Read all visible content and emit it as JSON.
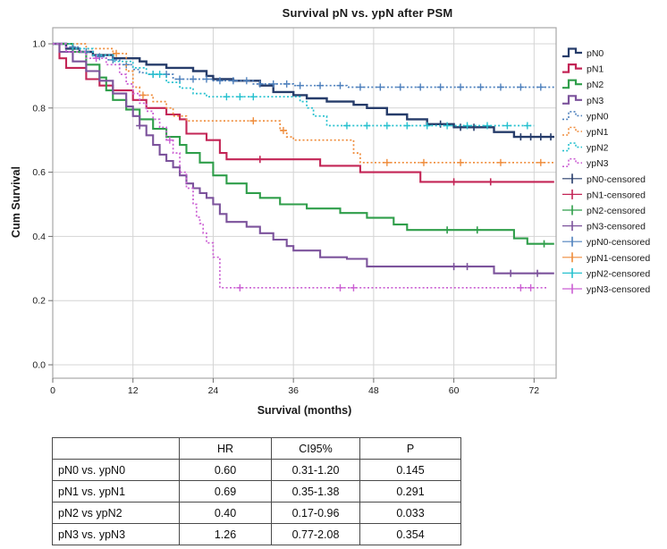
{
  "title": "Survival pN vs. ypN after PSM",
  "axes": {
    "x_label": "Survival (months)",
    "y_label": "Cum Survival",
    "x_ticks": [
      0,
      12,
      24,
      36,
      48,
      60,
      72
    ],
    "y_ticks": [
      0.0,
      0.2,
      0.4,
      0.6,
      0.8,
      1.0
    ]
  },
  "chart_data": {
    "type": "line",
    "subtype": "kaplan-meier-step",
    "title": "Survival pN vs. ypN after PSM",
    "xlabel": "Survival (months)",
    "ylabel": "Cum Survival",
    "xlim": [
      0,
      75.3
    ],
    "ylim": [
      0.0,
      1.0
    ],
    "x_ticks": [
      0,
      12,
      24,
      36,
      48,
      60,
      72
    ],
    "y_ticks": [
      0.0,
      0.2,
      0.4,
      0.6,
      0.8,
      1.0
    ],
    "grid": true,
    "legend_position": "right",
    "series": [
      {
        "name": "pN0",
        "color": "#263c6a",
        "dashed": false,
        "points": [
          [
            0,
            1.0
          ],
          [
            2,
            0.985
          ],
          [
            4,
            0.975
          ],
          [
            6,
            0.965
          ],
          [
            9,
            0.955
          ],
          [
            13,
            0.945
          ],
          [
            14,
            0.935
          ],
          [
            17,
            0.925
          ],
          [
            21,
            0.915
          ],
          [
            23,
            0.9
          ],
          [
            24,
            0.89
          ],
          [
            27,
            0.885
          ],
          [
            31,
            0.87
          ],
          [
            33,
            0.85
          ],
          [
            36,
            0.84
          ],
          [
            38,
            0.83
          ],
          [
            41,
            0.82
          ],
          [
            45,
            0.81
          ],
          [
            47,
            0.8
          ],
          [
            50,
            0.78
          ],
          [
            53,
            0.765
          ],
          [
            56,
            0.75
          ],
          [
            60,
            0.74
          ],
          [
            66,
            0.725
          ],
          [
            69,
            0.71
          ],
          [
            75,
            0.71
          ]
        ],
        "censored": [
          [
            58,
            0.75
          ],
          [
            61,
            0.74
          ],
          [
            63,
            0.74
          ],
          [
            70,
            0.71
          ],
          [
            71.5,
            0.71
          ],
          [
            73,
            0.71
          ],
          [
            74.5,
            0.71
          ]
        ]
      },
      {
        "name": "pN1",
        "color": "#c32556",
        "dashed": false,
        "points": [
          [
            0,
            1.0
          ],
          [
            1,
            0.955
          ],
          [
            2,
            0.925
          ],
          [
            5,
            0.89
          ],
          [
            7,
            0.87
          ],
          [
            9,
            0.855
          ],
          [
            12,
            0.825
          ],
          [
            14,
            0.8
          ],
          [
            17,
            0.78
          ],
          [
            19,
            0.765
          ],
          [
            20,
            0.72
          ],
          [
            23,
            0.7
          ],
          [
            25,
            0.66
          ],
          [
            26,
            0.64
          ],
          [
            40,
            0.62
          ],
          [
            46,
            0.6
          ],
          [
            55,
            0.57
          ],
          [
            75,
            0.57
          ]
        ],
        "censored": [
          [
            31,
            0.64
          ],
          [
            60,
            0.57
          ],
          [
            65.5,
            0.57
          ]
        ]
      },
      {
        "name": "pN2",
        "color": "#2f9e4a",
        "dashed": false,
        "points": [
          [
            0,
            1.0
          ],
          [
            3,
            0.975
          ],
          [
            5,
            0.935
          ],
          [
            7,
            0.895
          ],
          [
            8,
            0.855
          ],
          [
            9,
            0.825
          ],
          [
            11,
            0.795
          ],
          [
            13,
            0.765
          ],
          [
            15,
            0.735
          ],
          [
            17,
            0.71
          ],
          [
            19,
            0.685
          ],
          [
            20,
            0.66
          ],
          [
            22,
            0.63
          ],
          [
            24,
            0.59
          ],
          [
            26,
            0.565
          ],
          [
            29,
            0.535
          ],
          [
            31,
            0.52
          ],
          [
            34,
            0.5
          ],
          [
            38,
            0.487
          ],
          [
            43,
            0.473
          ],
          [
            47,
            0.458
          ],
          [
            51,
            0.437
          ],
          [
            53,
            0.42
          ],
          [
            69,
            0.394
          ],
          [
            71,
            0.377
          ],
          [
            75,
            0.377
          ]
        ],
        "censored": [
          [
            59,
            0.42
          ],
          [
            63.5,
            0.42
          ],
          [
            73.5,
            0.377
          ]
        ]
      },
      {
        "name": "pN3",
        "color": "#7c539c",
        "dashed": false,
        "points": [
          [
            0,
            1.0
          ],
          [
            1,
            0.975
          ],
          [
            3,
            0.945
          ],
          [
            5,
            0.915
          ],
          [
            7,
            0.885
          ],
          [
            9,
            0.845
          ],
          [
            11,
            0.805
          ],
          [
            12,
            0.775
          ],
          [
            13,
            0.745
          ],
          [
            14,
            0.715
          ],
          [
            15,
            0.685
          ],
          [
            16,
            0.655
          ],
          [
            17,
            0.635
          ],
          [
            18,
            0.615
          ],
          [
            19,
            0.59
          ],
          [
            20,
            0.565
          ],
          [
            21,
            0.55
          ],
          [
            22,
            0.535
          ],
          [
            23,
            0.52
          ],
          [
            24,
            0.5
          ],
          [
            25,
            0.47
          ],
          [
            26,
            0.445
          ],
          [
            29,
            0.43
          ],
          [
            31,
            0.41
          ],
          [
            33,
            0.39
          ],
          [
            35,
            0.37
          ],
          [
            36,
            0.356
          ],
          [
            40,
            0.335
          ],
          [
            44,
            0.33
          ],
          [
            47,
            0.306
          ],
          [
            66,
            0.285
          ],
          [
            75,
            0.285
          ]
        ],
        "censored": [
          [
            13,
            0.745
          ],
          [
            60,
            0.306
          ],
          [
            62,
            0.306
          ],
          [
            68.5,
            0.285
          ],
          [
            72.5,
            0.285
          ]
        ]
      },
      {
        "name": "ypN0",
        "color": "#4f81bd",
        "dashed": true,
        "points": [
          [
            0,
            1.0
          ],
          [
            2,
            0.99
          ],
          [
            4,
            0.975
          ],
          [
            6,
            0.96
          ],
          [
            8,
            0.95
          ],
          [
            10,
            0.935
          ],
          [
            12,
            0.92
          ],
          [
            13,
            0.91
          ],
          [
            14,
            0.905
          ],
          [
            18,
            0.89
          ],
          [
            24,
            0.885
          ],
          [
            30,
            0.875
          ],
          [
            36,
            0.87
          ],
          [
            44,
            0.865
          ],
          [
            75,
            0.865
          ]
        ],
        "censored": [
          [
            3,
            0.99
          ],
          [
            5,
            0.975
          ],
          [
            7,
            0.96
          ],
          [
            9,
            0.95
          ],
          [
            11,
            0.935
          ],
          [
            15,
            0.905
          ],
          [
            17,
            0.905
          ],
          [
            19,
            0.89
          ],
          [
            21,
            0.89
          ],
          [
            23,
            0.89
          ],
          [
            25,
            0.885
          ],
          [
            27,
            0.885
          ],
          [
            29,
            0.885
          ],
          [
            31,
            0.875
          ],
          [
            33,
            0.875
          ],
          [
            35,
            0.875
          ],
          [
            37,
            0.87
          ],
          [
            40,
            0.87
          ],
          [
            43,
            0.87
          ],
          [
            46,
            0.865
          ],
          [
            49,
            0.865
          ],
          [
            52,
            0.865
          ],
          [
            55,
            0.865
          ],
          [
            58,
            0.865
          ],
          [
            61,
            0.865
          ],
          [
            64,
            0.865
          ],
          [
            67,
            0.865
          ],
          [
            70,
            0.865
          ],
          [
            73,
            0.865
          ]
        ]
      },
      {
        "name": "ypN1",
        "color": "#ef8c3b",
        "dashed": true,
        "points": [
          [
            0,
            1.0
          ],
          [
            5,
            0.985
          ],
          [
            9,
            0.97
          ],
          [
            11,
            0.915
          ],
          [
            12,
            0.865
          ],
          [
            13,
            0.84
          ],
          [
            15,
            0.82
          ],
          [
            17,
            0.8
          ],
          [
            18,
            0.775
          ],
          [
            20,
            0.76
          ],
          [
            34,
            0.73
          ],
          [
            35,
            0.71
          ],
          [
            36,
            0.7
          ],
          [
            45,
            0.66
          ],
          [
            46,
            0.63
          ],
          [
            75,
            0.63
          ]
        ],
        "censored": [
          [
            9.5,
            0.97
          ],
          [
            13.5,
            0.84
          ],
          [
            30,
            0.76
          ],
          [
            34.5,
            0.73
          ],
          [
            50,
            0.63
          ],
          [
            55.5,
            0.63
          ],
          [
            61,
            0.63
          ],
          [
            67,
            0.63
          ],
          [
            73,
            0.63
          ]
        ]
      },
      {
        "name": "ypN2",
        "color": "#27c1cf",
        "dashed": true,
        "points": [
          [
            0,
            1.0
          ],
          [
            3,
            0.985
          ],
          [
            6,
            0.965
          ],
          [
            9,
            0.945
          ],
          [
            12,
            0.925
          ],
          [
            14,
            0.905
          ],
          [
            17,
            0.88
          ],
          [
            19,
            0.862
          ],
          [
            21,
            0.845
          ],
          [
            23,
            0.835
          ],
          [
            37,
            0.82
          ],
          [
            38,
            0.8
          ],
          [
            39,
            0.775
          ],
          [
            41,
            0.745
          ],
          [
            72,
            0.745
          ]
        ],
        "censored": [
          [
            15,
            0.905
          ],
          [
            16,
            0.905
          ],
          [
            26,
            0.835
          ],
          [
            28,
            0.835
          ],
          [
            30,
            0.835
          ],
          [
            44,
            0.745
          ],
          [
            47,
            0.745
          ],
          [
            50,
            0.745
          ],
          [
            53,
            0.745
          ],
          [
            56,
            0.745
          ],
          [
            59,
            0.745
          ],
          [
            62,
            0.745
          ],
          [
            65,
            0.745
          ],
          [
            68,
            0.745
          ],
          [
            71,
            0.745
          ]
        ]
      },
      {
        "name": "ypN3",
        "color": "#cb5fd3",
        "dashed": true,
        "points": [
          [
            0,
            1.0
          ],
          [
            2,
            0.975
          ],
          [
            5,
            0.955
          ],
          [
            8,
            0.935
          ],
          [
            10,
            0.905
          ],
          [
            11,
            0.875
          ],
          [
            12,
            0.845
          ],
          [
            13,
            0.815
          ],
          [
            14,
            0.79
          ],
          [
            15,
            0.765
          ],
          [
            16,
            0.74
          ],
          [
            17,
            0.7
          ],
          [
            18,
            0.66
          ],
          [
            19,
            0.6
          ],
          [
            20,
            0.55
          ],
          [
            21,
            0.5
          ],
          [
            21.5,
            0.46
          ],
          [
            22,
            0.44
          ],
          [
            22.5,
            0.41
          ],
          [
            23,
            0.38
          ],
          [
            24,
            0.335
          ],
          [
            25,
            0.24
          ],
          [
            74,
            0.24
          ]
        ],
        "censored": [
          [
            6.5,
            0.955
          ],
          [
            17.5,
            0.7
          ],
          [
            28,
            0.24
          ],
          [
            43,
            0.24
          ],
          [
            45,
            0.24
          ],
          [
            70,
            0.24
          ],
          [
            71.5,
            0.24
          ]
        ]
      }
    ]
  },
  "legend": {
    "labels": [
      "pN0",
      "pN1",
      "pN2",
      "pN3",
      "ypN0",
      "ypN1",
      "ypN2",
      "ypN3",
      "pN0-censored",
      "pN1-censored",
      "pN2-censored",
      "pN3-censored",
      "ypN0-censored",
      "ypN1-censored",
      "ypN2-censored",
      "ypN3-censored"
    ]
  },
  "table": {
    "headers": [
      "",
      "HR",
      "CI95%",
      "P"
    ],
    "rows": [
      {
        "comparison": "pN0 vs. ypN0",
        "hr": "0.60",
        "ci95": "0.31-1.20",
        "p": "0.145"
      },
      {
        "comparison": "pN1 vs. ypN1",
        "hr": "0.69",
        "ci95": "0.35-1.38",
        "p": "0.291"
      },
      {
        "comparison": "pN2 vs ypN2",
        "hr": "0.40",
        "ci95": "0.17-0.96",
        "p": "0.033"
      },
      {
        "comparison": "pN3 vs. ypN3",
        "hr": "1.26",
        "ci95": "0.77-2.08",
        "p": "0.354"
      }
    ]
  },
  "colors": {
    "grid": "#d4d4d4",
    "frame": "#a8a8a8",
    "text": "#1a1a1a"
  }
}
